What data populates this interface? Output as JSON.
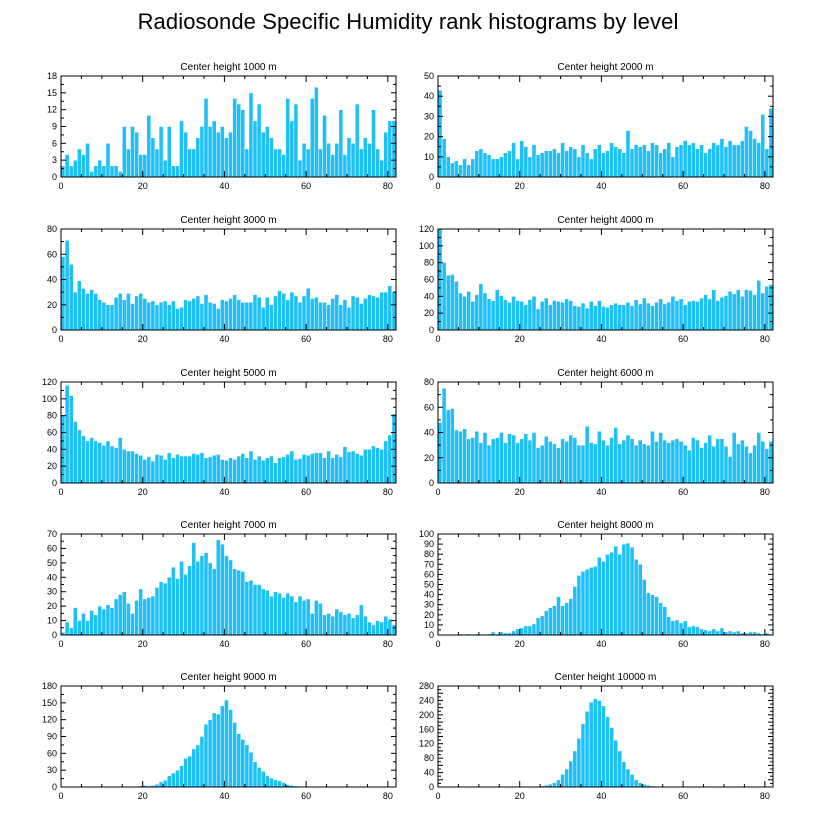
{
  "title": "Radiosonde Specific Humidity rank histograms by level",
  "colors": {
    "bar": "#1ec0f5",
    "bar_edge": "#ffffff",
    "axis": "#000000",
    "text": "#000000"
  },
  "chart_data": [
    {
      "type": "bar",
      "title": "Center height 1000 m",
      "xlim": [
        0,
        82
      ],
      "ylim": [
        0,
        18
      ],
      "xticks": [
        0,
        20,
        40,
        60,
        80
      ],
      "yticks": [
        0,
        3,
        6,
        9,
        12,
        15,
        18
      ],
      "values": [
        2,
        4,
        2,
        3,
        5,
        4,
        6,
        1,
        2,
        3,
        2,
        6,
        2,
        2,
        1,
        9,
        5,
        9,
        8,
        4,
        4,
        11,
        7,
        5,
        9,
        3,
        9,
        2,
        2,
        10,
        8,
        5,
        5,
        7,
        9,
        14,
        9,
        10,
        8,
        9,
        7,
        8,
        14,
        13,
        12,
        5,
        15,
        10,
        13,
        8,
        9,
        7,
        5,
        5,
        4,
        14,
        10,
        13,
        3,
        6,
        5,
        14,
        16,
        5,
        11,
        6,
        4,
        6,
        12,
        4,
        7,
        6,
        13,
        5,
        7,
        6,
        12,
        5,
        3,
        8,
        10,
        10
      ]
    },
    {
      "type": "bar",
      "title": "Center height 2000 m",
      "xlim": [
        0,
        82
      ],
      "ylim": [
        0,
        50
      ],
      "xticks": [
        0,
        20,
        40,
        60,
        80
      ],
      "yticks": [
        0,
        10,
        20,
        30,
        40,
        50
      ],
      "values": [
        43,
        19,
        10,
        7,
        8,
        6,
        9,
        6,
        9,
        13,
        14,
        12,
        11,
        9,
        9,
        10,
        12,
        13,
        17,
        9,
        18,
        15,
        10,
        16,
        11,
        12,
        13,
        13,
        14,
        12,
        17,
        13,
        15,
        14,
        10,
        16,
        12,
        9,
        14,
        16,
        12,
        13,
        17,
        15,
        14,
        12,
        23,
        14,
        16,
        15,
        16,
        13,
        17,
        16,
        12,
        14,
        17,
        10,
        15,
        16,
        18,
        16,
        17,
        14,
        16,
        12,
        14,
        17,
        16,
        19,
        15,
        18,
        16,
        16,
        18,
        25,
        23,
        19,
        17,
        31,
        14,
        34
      ]
    },
    {
      "type": "bar",
      "title": "Center height 3000 m",
      "xlim": [
        0,
        82
      ],
      "ylim": [
        0,
        80
      ],
      "xticks": [
        0,
        20,
        40,
        60,
        80
      ],
      "yticks": [
        0,
        20,
        40,
        60,
        80
      ],
      "values": [
        58,
        71,
        52,
        30,
        39,
        33,
        29,
        32,
        29,
        24,
        22,
        20,
        20,
        26,
        29,
        24,
        29,
        21,
        27,
        29,
        25,
        22,
        23,
        20,
        22,
        23,
        20,
        23,
        17,
        18,
        24,
        23,
        25,
        27,
        21,
        28,
        22,
        21,
        17,
        24,
        23,
        25,
        28,
        24,
        22,
        22,
        22,
        28,
        26,
        18,
        26,
        20,
        27,
        31,
        29,
        24,
        30,
        27,
        22,
        27,
        33,
        25,
        26,
        22,
        22,
        20,
        25,
        28,
        20,
        24,
        18,
        27,
        26,
        21,
        25,
        28,
        27,
        26,
        30,
        30,
        35,
        30
      ]
    },
    {
      "type": "bar",
      "title": "Center height 4000 m",
      "xlim": [
        0,
        82
      ],
      "ylim": [
        0,
        120
      ],
      "xticks": [
        0,
        20,
        40,
        60,
        80
      ],
      "yticks": [
        0,
        20,
        40,
        60,
        80,
        100,
        120
      ],
      "values": [
        120,
        80,
        65,
        66,
        58,
        44,
        40,
        46,
        34,
        42,
        55,
        44,
        37,
        35,
        48,
        41,
        36,
        33,
        40,
        35,
        34,
        30,
        36,
        40,
        25,
        34,
        38,
        30,
        35,
        34,
        33,
        37,
        35,
        29,
        28,
        32,
        26,
        34,
        29,
        35,
        28,
        27,
        30,
        32,
        30,
        30,
        33,
        29,
        36,
        31,
        38,
        32,
        29,
        33,
        37,
        31,
        33,
        40,
        35,
        37,
        30,
        34,
        35,
        34,
        38,
        42,
        37,
        48,
        35,
        39,
        41,
        46,
        43,
        48,
        40,
        48,
        47,
        42,
        59,
        44,
        52,
        54
      ]
    },
    {
      "type": "bar",
      "title": "Center height 5000 m",
      "xlim": [
        0,
        82
      ],
      "ylim": [
        0,
        120
      ],
      "xticks": [
        0,
        20,
        40,
        60,
        80
      ],
      "yticks": [
        0,
        20,
        40,
        60,
        80,
        100,
        120
      ],
      "values": [
        80,
        116,
        104,
        73,
        63,
        56,
        50,
        54,
        50,
        48,
        45,
        50,
        44,
        42,
        54,
        40,
        38,
        38,
        35,
        33,
        28,
        31,
        26,
        34,
        33,
        28,
        36,
        30,
        34,
        32,
        32,
        32,
        35,
        34,
        36,
        30,
        31,
        33,
        34,
        28,
        27,
        30,
        28,
        32,
        35,
        30,
        38,
        28,
        32,
        27,
        30,
        32,
        24,
        30,
        31,
        34,
        38,
        28,
        29,
        34,
        33,
        35,
        36,
        36,
        30,
        38,
        30,
        34,
        31,
        43,
        37,
        38,
        35,
        33,
        40,
        40,
        44,
        42,
        40,
        50,
        57,
        82
      ]
    },
    {
      "type": "bar",
      "title": "Center height 6000 m",
      "xlim": [
        0,
        82
      ],
      "ylim": [
        0,
        80
      ],
      "xticks": [
        0,
        20,
        40,
        60,
        80
      ],
      "yticks": [
        0,
        20,
        40,
        60,
        80
      ],
      "values": [
        48,
        75,
        58,
        59,
        42,
        41,
        43,
        35,
        36,
        41,
        32,
        40,
        30,
        35,
        36,
        40,
        32,
        39,
        38,
        32,
        35,
        39,
        34,
        40,
        28,
        30,
        37,
        33,
        31,
        28,
        35,
        33,
        38,
        36,
        30,
        30,
        45,
        32,
        31,
        41,
        34,
        30,
        36,
        44,
        31,
        34,
        38,
        35,
        30,
        34,
        31,
        30,
        41,
        33,
        40,
        34,
        32,
        34,
        35,
        33,
        30,
        26,
        36,
        34,
        28,
        32,
        38,
        29,
        35,
        35,
        29,
        21,
        40,
        31,
        34,
        29,
        24,
        30,
        40,
        33,
        27,
        33
      ]
    },
    {
      "type": "bar",
      "title": "Center height 7000 m",
      "xlim": [
        0,
        82
      ],
      "ylim": [
        0,
        70
      ],
      "xticks": [
        0,
        20,
        40,
        60,
        80
      ],
      "yticks": [
        0,
        10,
        20,
        30,
        40,
        50,
        60,
        70
      ],
      "values": [
        2,
        9,
        5,
        19,
        10,
        15,
        10,
        17,
        14,
        20,
        18,
        21,
        19,
        25,
        28,
        30,
        22,
        15,
        24,
        32,
        25,
        26,
        27,
        33,
        37,
        36,
        40,
        47,
        39,
        51,
        42,
        48,
        64,
        51,
        55,
        57,
        50,
        46,
        66,
        63,
        55,
        52,
        46,
        45,
        44,
        37,
        38,
        35,
        35,
        32,
        31,
        27,
        30,
        29,
        26,
        29,
        27,
        23,
        27,
        24,
        25,
        15,
        24,
        22,
        14,
        15,
        13,
        18,
        16,
        14,
        15,
        12,
        14,
        21,
        13,
        9,
        7,
        10,
        9,
        13,
        11,
        7
      ]
    },
    {
      "type": "bar",
      "title": "Center height 8000 m",
      "xlim": [
        0,
        82
      ],
      "ylim": [
        0,
        100
      ],
      "xticks": [
        0,
        20,
        40,
        60,
        80
      ],
      "yticks": [
        0,
        10,
        20,
        30,
        40,
        50,
        60,
        70,
        80,
        90,
        100
      ],
      "values": [
        0,
        0,
        0,
        0,
        0,
        1,
        0,
        1,
        0,
        1,
        0,
        0,
        1,
        3,
        1,
        3,
        2,
        2,
        4,
        6,
        7,
        9,
        9,
        11,
        17,
        19,
        24,
        27,
        29,
        38,
        29,
        32,
        36,
        48,
        59,
        63,
        65,
        67,
        68,
        77,
        73,
        80,
        82,
        88,
        80,
        90,
        91,
        87,
        75,
        70,
        55,
        42,
        40,
        38,
        32,
        28,
        18,
        14,
        15,
        12,
        14,
        8,
        9,
        8,
        6,
        5,
        4,
        6,
        4,
        7,
        3,
        4,
        3,
        4,
        2,
        2,
        3,
        3,
        2,
        1,
        2,
        1
      ]
    },
    {
      "type": "bar",
      "title": "Center height 9000 m",
      "xlim": [
        0,
        82
      ],
      "ylim": [
        0,
        180
      ],
      "xticks": [
        0,
        20,
        40,
        60,
        80
      ],
      "yticks": [
        0,
        30,
        60,
        90,
        120,
        150,
        180
      ],
      "values": [
        0,
        0,
        0,
        0,
        0,
        0,
        0,
        0,
        0,
        0,
        0,
        0,
        0,
        0,
        0,
        0,
        0,
        0,
        0,
        2,
        3,
        2,
        3,
        5,
        9,
        12,
        20,
        25,
        30,
        38,
        51,
        55,
        68,
        75,
        90,
        112,
        120,
        132,
        130,
        145,
        155,
        138,
        115,
        95,
        85,
        75,
        62,
        45,
        35,
        28,
        20,
        16,
        13,
        11,
        8,
        4,
        3,
        2,
        1,
        1,
        0,
        0,
        0,
        0,
        0,
        0,
        0,
        0,
        0,
        0,
        0,
        0,
        0,
        0,
        0,
        0,
        0,
        0,
        0,
        0,
        0,
        0
      ]
    },
    {
      "type": "bar",
      "title": "Center height 10000 m",
      "xlim": [
        0,
        82
      ],
      "ylim": [
        0,
        280
      ],
      "xticks": [
        0,
        20,
        40,
        60,
        80
      ],
      "yticks": [
        0,
        20,
        40,
        60,
        80,
        100,
        120,
        140,
        160,
        180,
        200,
        220,
        240,
        260,
        280
      ],
      "yticklabels_shown": [
        0,
        40,
        80,
        120,
        160,
        200,
        240,
        280
      ],
      "values": [
        0,
        0,
        0,
        0,
        0,
        0,
        0,
        0,
        0,
        0,
        0,
        0,
        0,
        0,
        0,
        0,
        0,
        0,
        0,
        0,
        0,
        0,
        0,
        1,
        2,
        3,
        5,
        8,
        12,
        20,
        35,
        50,
        72,
        100,
        135,
        175,
        210,
        235,
        245,
        240,
        225,
        195,
        165,
        130,
        100,
        70,
        50,
        35,
        20,
        12,
        8,
        5,
        3,
        2,
        1,
        0,
        0,
        0,
        0,
        0,
        0,
        0,
        0,
        0,
        0,
        0,
        0,
        0,
        0,
        0,
        0,
        0,
        0,
        0,
        0,
        0,
        0,
        0,
        0,
        0,
        0,
        0
      ]
    }
  ]
}
